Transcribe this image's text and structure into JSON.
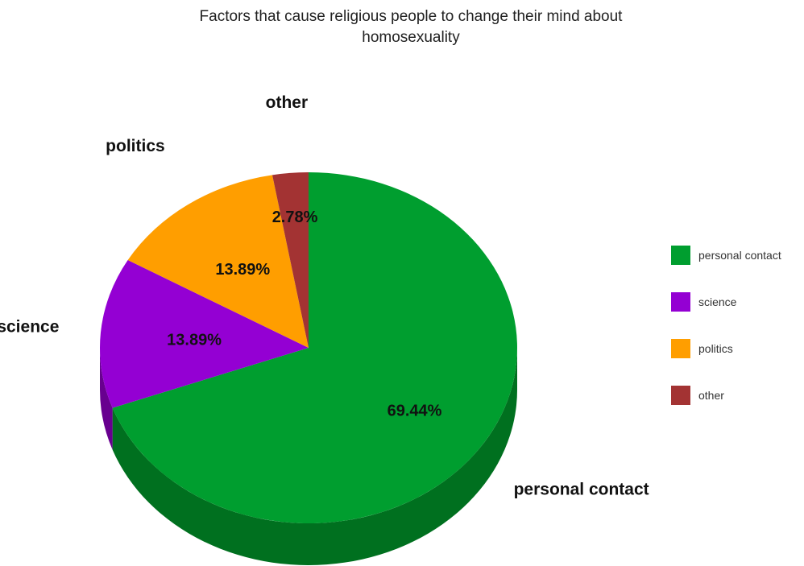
{
  "chart_data": {
    "type": "pie",
    "title": [
      "Factors that cause religious people to change their mind about",
      "homosexuality"
    ],
    "slices": [
      {
        "label": "personal contact",
        "value": 69.44,
        "value_label": "69.44%",
        "color": "#009e2f",
        "side_color": "#00701f"
      },
      {
        "label": "science",
        "value": 13.89,
        "value_label": "13.89%",
        "color": "#9400d3",
        "side_color": "#68008f"
      },
      {
        "label": "politics",
        "value": 13.89,
        "value_label": "13.89%",
        "color": "#ff9e00",
        "side_color": "#bd7400"
      },
      {
        "label": "other",
        "value": 2.78,
        "value_label": "2.78%",
        "color": "#a33333",
        "side_color": "#702020"
      }
    ],
    "legend_position": "right",
    "three_d": true
  }
}
